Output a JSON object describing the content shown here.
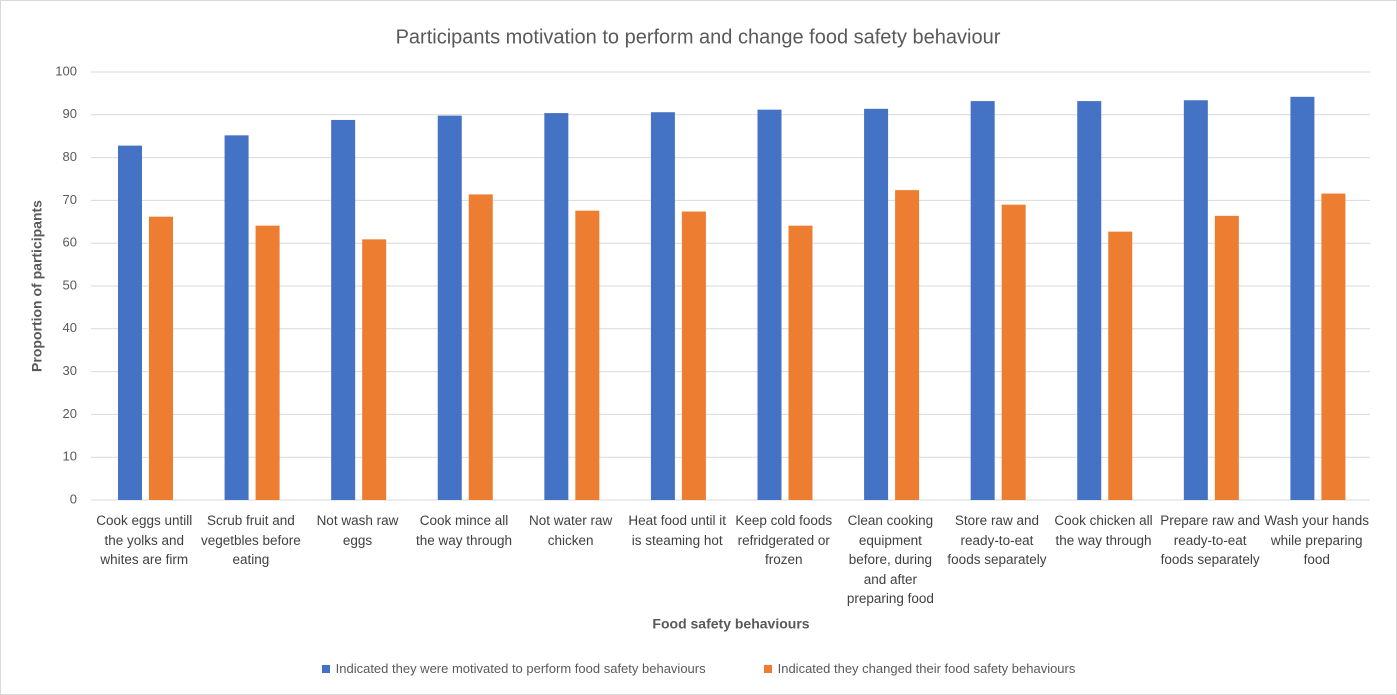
{
  "chart_data": {
    "type": "bar",
    "title": "Participants motivation to perform and change food safety behaviour",
    "x_label": "Food safety behaviours",
    "y_label": "Proportion of participants",
    "categories": [
      "Cook eggs untill the yolks and whites are firm",
      "Scrub fruit and vegetbles before eating",
      "Not wash raw eggs",
      "Cook mince all the way through",
      "Not water raw chicken",
      "Heat food until it is steaming hot",
      "Keep cold foods refridgerated or frozen",
      "Clean cooking equipment before, during and after preparing food",
      "Store raw and ready-to-eat foods separately",
      "Cook chicken all the way through",
      "Prepare raw and ready-to-eat foods separately",
      "Wash your hands while preparing food"
    ],
    "series": [
      {
        "name": "Indicated they were motivated to perform food safety behaviours",
        "color": "#4472c4",
        "values": [
          82.8,
          85.2,
          88.8,
          89.8,
          90.4,
          90.6,
          91.2,
          91.4,
          93.2,
          93.2,
          93.4,
          94.2
        ]
      },
      {
        "name": "Indicated they changed their food safety behaviours",
        "color": "#ed7d31",
        "values": [
          66.2,
          64.1,
          60.9,
          71.4,
          67.6,
          67.4,
          64.1,
          72.4,
          69.0,
          62.7,
          66.4,
          71.6
        ]
      }
    ],
    "ylim": [
      0,
      100
    ],
    "yticks": [
      0,
      10,
      20,
      30,
      40,
      50,
      60,
      70,
      80,
      90,
      100
    ],
    "grid": true,
    "legend": "bottom"
  }
}
